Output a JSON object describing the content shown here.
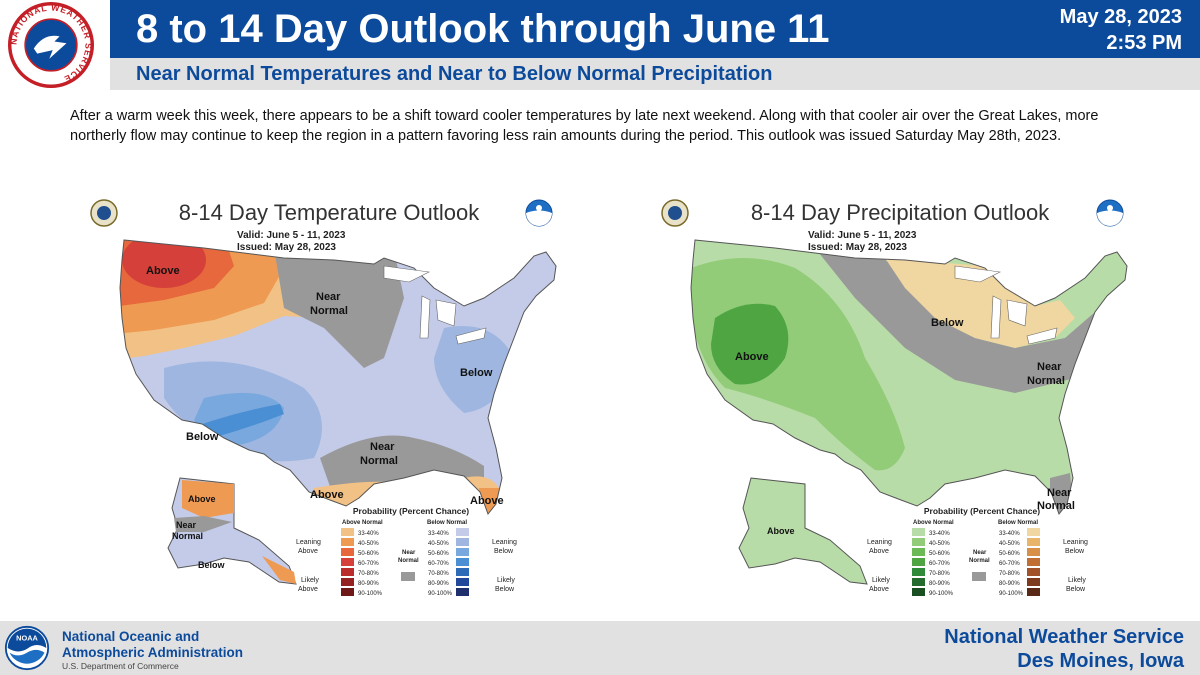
{
  "header": {
    "title": "8 to 14 Day Outlook through June 11",
    "date": "May 28, 2023",
    "time": "2:53 PM",
    "subtitle": "Near Normal Temperatures and Near to Below Normal Precipitation",
    "logo_text": "NATIONAL WEATHER SERVICE"
  },
  "description": "After a warm week this week, there appears to be a shift toward cooler temperatures by late next weekend.  Along with that cooler air over the Great Lakes, more northerly flow may continue to keep the region in a pattern favoring less rain amounts during the period.  This outlook was issued Saturday May 28th, 2023.",
  "maps": {
    "temperature": {
      "title": "8-14 Day Temperature Outlook",
      "valid": "Valid:  June 5 - 11, 2023",
      "issued": "Issued:  May 28, 2023",
      "labels": {
        "above_nw": "Above",
        "near_north_1": "Near",
        "near_north_2": "Normal",
        "below_east": "Below",
        "below_sw": "Below",
        "near_south_1": "Near",
        "near_south_2": "Normal",
        "above_gulf": "Above",
        "above_fl": "Above",
        "above_ak": "Above",
        "near_ak_1": "Near",
        "near_ak_2": "Normal",
        "below_ak": "Below"
      },
      "legend": {
        "title": "Probability (Percent Chance)",
        "col_left": "Above Normal",
        "col_right": "Below Normal",
        "leaning_left_1": "Leaning",
        "leaning_left_2": "Above",
        "likely_left_1": "Likely",
        "likely_left_2": "Above",
        "near_1": "Near",
        "near_2": "Normal",
        "leaning_right_1": "Leaning",
        "leaning_right_2": "Below",
        "likely_right_1": "Likely",
        "likely_right_2": "Below",
        "bins": [
          "33-40%",
          "40-50%",
          "50-60%",
          "60-70%",
          "70-80%",
          "80-90%",
          "90-100%"
        ],
        "colors_left": [
          "#f2c185",
          "#ee9a52",
          "#e6683c",
          "#d6403a",
          "#bb2c2c",
          "#952222",
          "#6e1818"
        ],
        "colors_right": [
          "#c4cbe8",
          "#9fb7e0",
          "#79a8de",
          "#4a8fd3",
          "#2d6bb8",
          "#22489a",
          "#1f2f6e"
        ],
        "near_color": "#999999"
      }
    },
    "precipitation": {
      "title": "8-14 Day Precipitation Outlook",
      "valid": "Valid:  June 5 - 11, 2023",
      "issued": "Issued:  May 28, 2023",
      "labels": {
        "above_west": "Above",
        "below_north": "Below",
        "near_east_1": "Near",
        "near_east_2": "Normal",
        "near_se_1": "Near",
        "near_se_2": "Normal",
        "above_ak": "Above"
      },
      "legend": {
        "title": "Probability (Percent Chance)",
        "col_left": "Above Normal",
        "col_right": "Below Normal",
        "leaning_left_1": "Leaning",
        "leaning_left_2": "Above",
        "likely_left_1": "Likely",
        "likely_left_2": "Above",
        "near_1": "Near",
        "near_2": "Normal",
        "leaning_right_1": "Leaning",
        "leaning_right_2": "Below",
        "likely_right_1": "Likely",
        "likely_right_2": "Below",
        "bins": [
          "33-40%",
          "40-50%",
          "50-60%",
          "60-70%",
          "70-80%",
          "80-90%",
          "90-100%"
        ],
        "colors_left": [
          "#b8dca8",
          "#92cc78",
          "#6cba55",
          "#4ea542",
          "#2f8a3a",
          "#236b2e",
          "#1a4f22"
        ],
        "colors_right": [
          "#f0d6a0",
          "#e8b46a",
          "#d89048",
          "#c06e34",
          "#a15228",
          "#7e3a1e",
          "#5a2816"
        ],
        "near_color": "#999999"
      }
    }
  },
  "footer": {
    "agency_line1": "National Oceanic and",
    "agency_line2": "Atmospheric Administration",
    "dept": "U.S. Department of Commerce",
    "office_line1": "National Weather Service",
    "office_line2": "Des Moines, Iowa"
  }
}
